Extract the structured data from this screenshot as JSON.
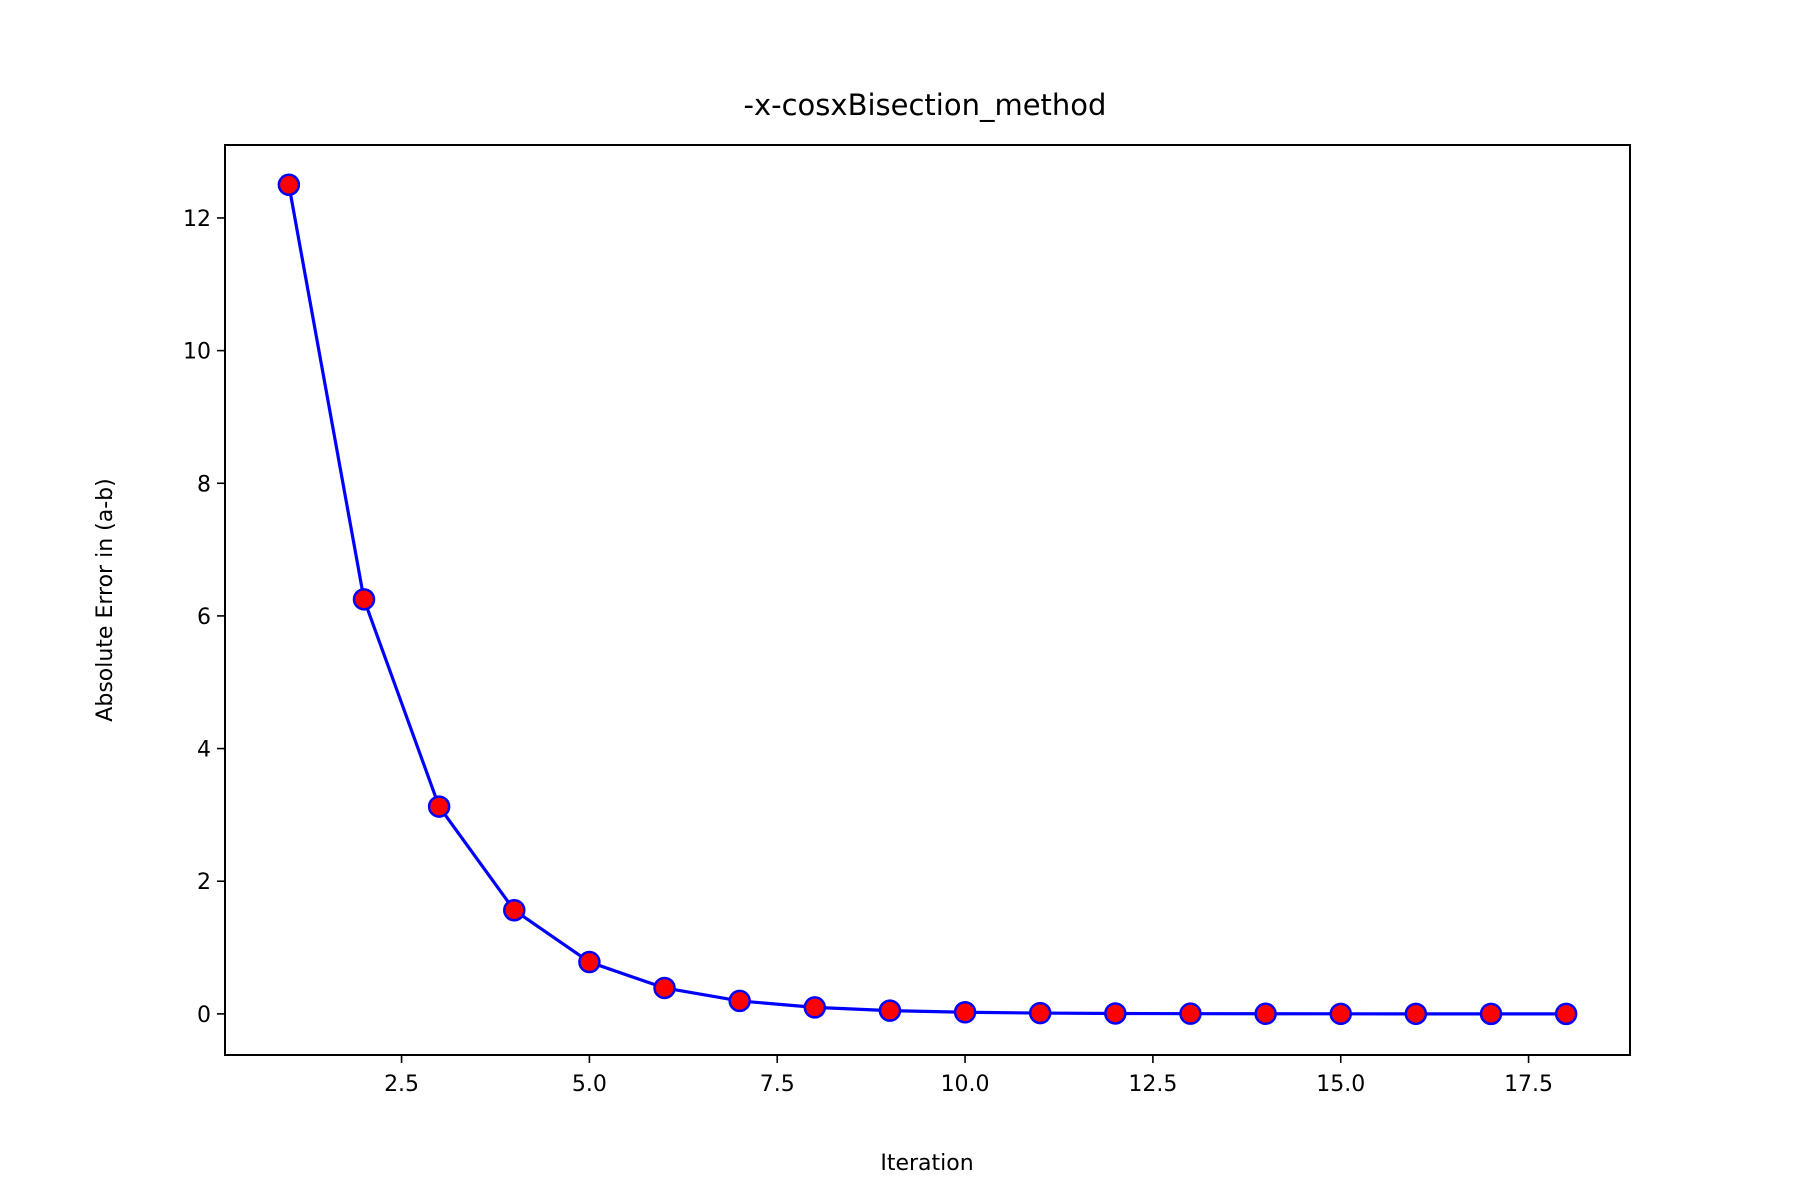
{
  "chart_data": {
    "type": "line",
    "title": "-x-cosxBisection_method",
    "xlabel": "Iteration",
    "ylabel": "Absolute Error in (a-b)",
    "xlim": [
      0.15,
      18.85
    ],
    "ylim": [
      -0.62,
      13.1
    ],
    "grid": false,
    "x_ticks": [
      2.5,
      5.0,
      7.5,
      10.0,
      12.5,
      15.0,
      17.5
    ],
    "x_tick_labels": [
      "2.5",
      "5.0",
      "7.5",
      "10.0",
      "12.5",
      "15.0",
      "17.5"
    ],
    "y_ticks": [
      0,
      2,
      4,
      6,
      8,
      10,
      12
    ],
    "y_tick_labels": [
      "0",
      "2",
      "4",
      "6",
      "8",
      "10",
      "12"
    ],
    "series": [
      {
        "line_color": "#0000ff",
        "marker_face_color": "#ff0000",
        "marker_edge_color": "#0000ff",
        "x": [
          1,
          2,
          3,
          4,
          5,
          6,
          7,
          8,
          9,
          10,
          11,
          12,
          13,
          14,
          15,
          16,
          17,
          18
        ],
        "y": [
          12.5,
          6.25,
          3.125,
          1.5625,
          0.78125,
          0.390625,
          0.1953125,
          0.09765625,
          0.048828125,
          0.0244140625,
          0.01220703125,
          0.006103515625,
          0.0030517578125,
          0.00152587890625,
          0.000762939453125,
          0.0003814697265625,
          0.00019073486328125,
          9.5367431640625e-05
        ]
      }
    ]
  }
}
